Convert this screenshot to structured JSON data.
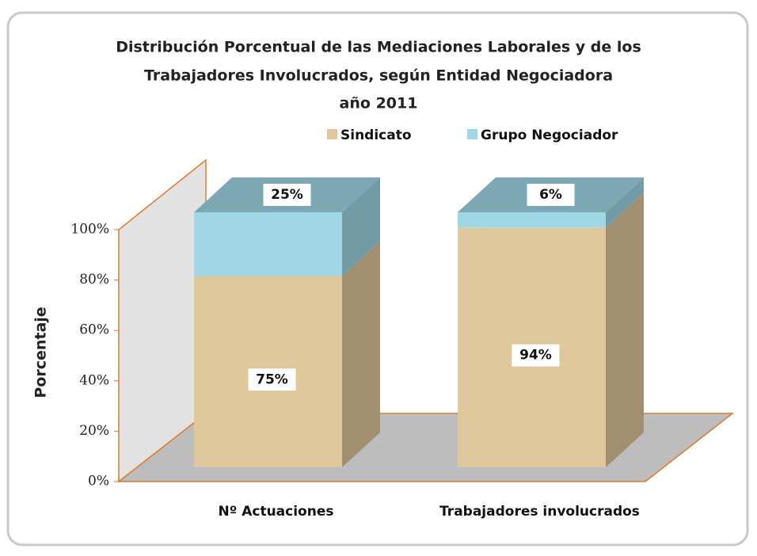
{
  "chart_data": {
    "type": "bar3d_stacked",
    "title": [
      "Distribución Porcentual de las Mediaciones Laborales y de los",
      "Trabajadores Involucrados, según Entidad Negociadora",
      "año 2011"
    ],
    "y_label": "Porcentaje",
    "categories": [
      "Nº Actuaciones",
      "Trabajadores involucrados"
    ],
    "series": [
      {
        "name": "Sindicato",
        "color": "#dfc79c",
        "values": [
          75,
          94
        ],
        "value_labels": [
          "75%",
          "94%"
        ]
      },
      {
        "name": "Grupo Negociador",
        "color": "#9fd7e7",
        "values": [
          25,
          6
        ],
        "value_labels": [
          "25%",
          "6%"
        ]
      }
    ],
    "ylim": [
      0,
      100
    ],
    "yticks": [
      {
        "value": 0,
        "label": "0%"
      },
      {
        "value": 20,
        "label": "20%"
      },
      {
        "value": 40,
        "label": "40%"
      },
      {
        "value": 60,
        "label": "60%"
      },
      {
        "value": 80,
        "label": "80%"
      },
      {
        "value": 100,
        "label": "100%"
      }
    ],
    "legend": "top"
  }
}
